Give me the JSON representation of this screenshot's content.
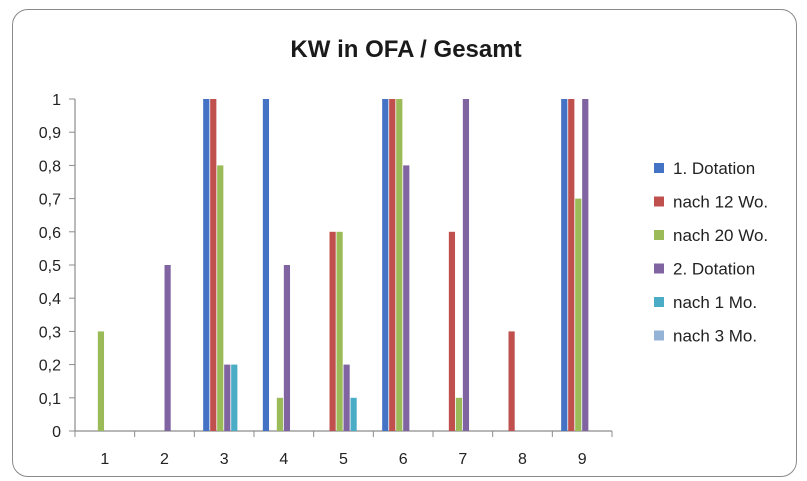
{
  "chart_data": {
    "type": "bar",
    "title": "KW in OFA / Gesamt",
    "xlabel": "",
    "ylabel": "",
    "ylim": [
      0,
      1
    ],
    "yticks": [
      "0",
      "0,1",
      "0,2",
      "0,3",
      "0,4",
      "0,5",
      "0,6",
      "0,7",
      "0,8",
      "0,9",
      "1"
    ],
    "categories": [
      "1",
      "2",
      "3",
      "4",
      "5",
      "6",
      "7",
      "8",
      "9"
    ],
    "legend_position": "right",
    "grid": false,
    "series": [
      {
        "name": "1. Dotation",
        "color": "#4472c4",
        "values": [
          0,
          0,
          1,
          1,
          0,
          1,
          0,
          0,
          1
        ]
      },
      {
        "name": "nach 12 Wo.",
        "color": "#c0504d",
        "values": [
          0,
          0,
          1,
          0,
          0.6,
          1,
          0.6,
          0.3,
          1
        ]
      },
      {
        "name": "nach 20 Wo.",
        "color": "#9bbb59",
        "values": [
          0.3,
          0,
          0.8,
          0.1,
          0.6,
          1,
          0.1,
          0,
          0.7
        ]
      },
      {
        "name": "2. Dotation",
        "color": "#8064a2",
        "values": [
          0,
          0.5,
          0.2,
          0.5,
          0.2,
          0.8,
          1,
          0,
          1
        ]
      },
      {
        "name": "nach 1 Mo.",
        "color": "#4bacc6",
        "values": [
          0,
          0,
          0.2,
          0,
          0.1,
          0,
          0,
          0,
          0
        ]
      },
      {
        "name": "nach 3 Mo.",
        "color": "#95b3d7",
        "values": [
          0,
          0,
          0,
          0,
          0,
          0,
          0,
          0,
          0
        ]
      }
    ]
  }
}
